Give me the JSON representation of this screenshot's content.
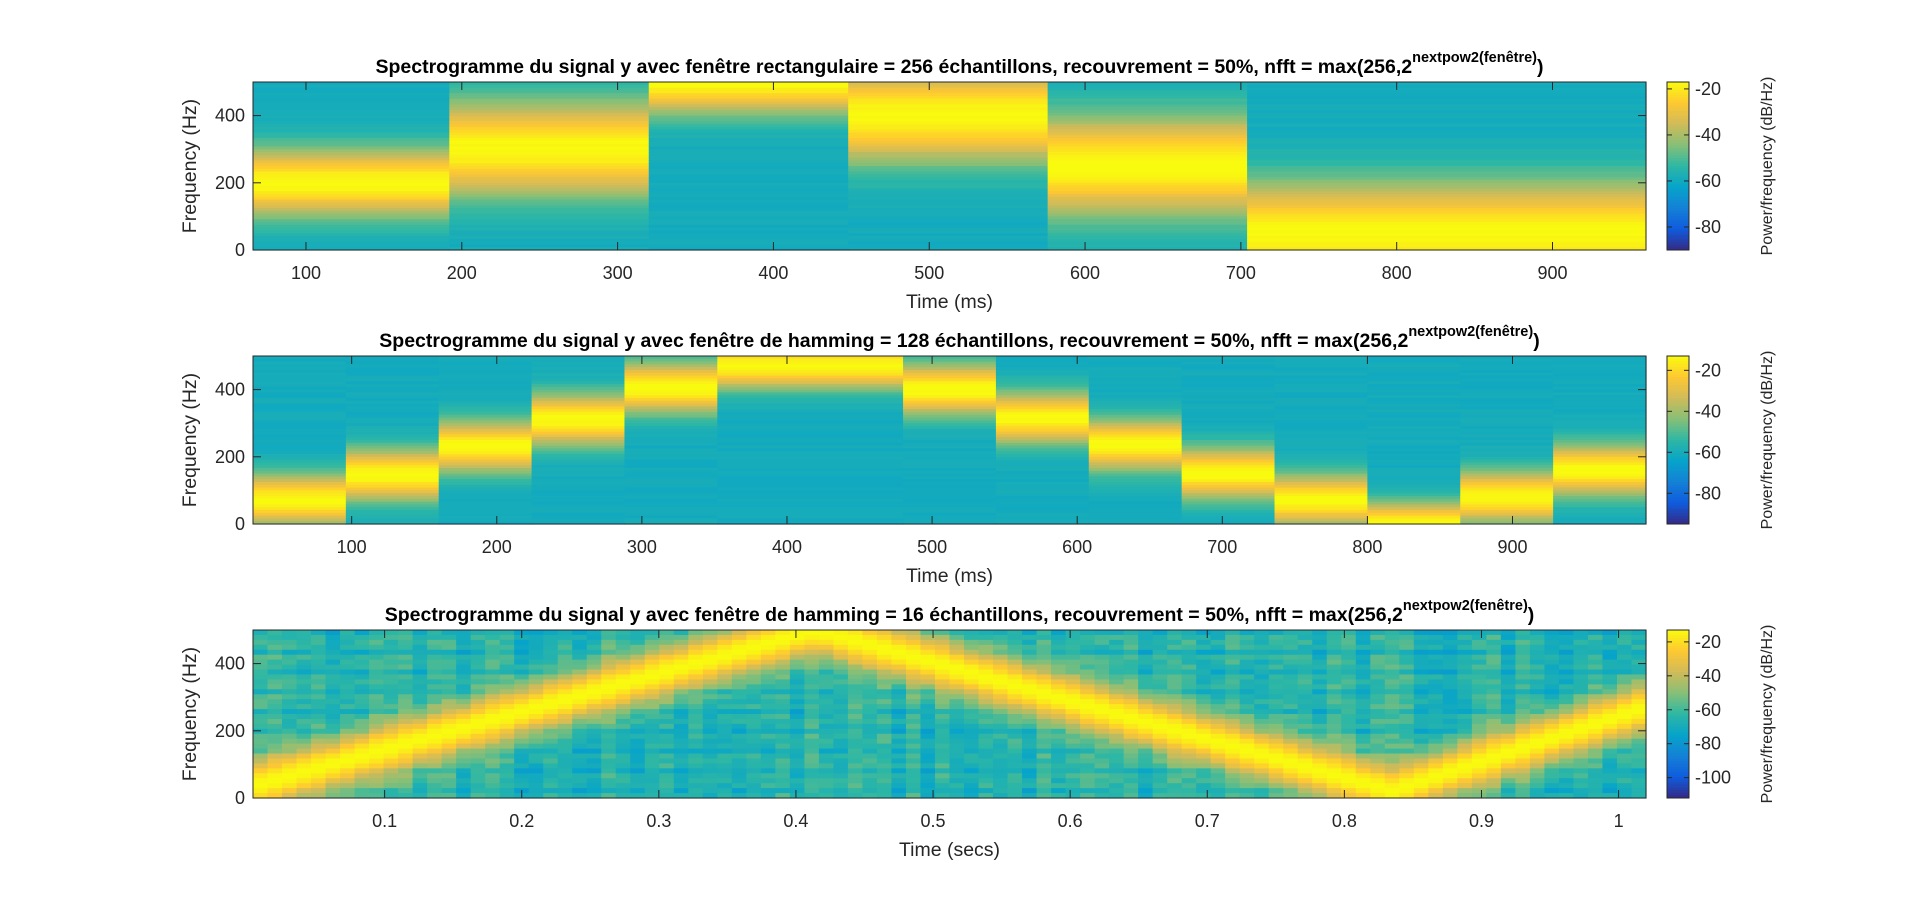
{
  "colors": {
    "parula": [
      "#352a87",
      "#0f5cdd",
      "#1481d6",
      "#06a4ca",
      "#2eb7a4",
      "#87bf77",
      "#d1bb59",
      "#fec832",
      "#f9fb0e"
    ]
  },
  "chart_data": [
    {
      "type": "heatmap",
      "title_main": "Spectrogramme du signal y avec fenêtre rectangulaire  = 256 échantillons, recouvrement = 50%, nfft = max(256,2",
      "title_sup": "nextpow2(fenêtre)",
      "title_end": ")",
      "xlabel": "Time (ms)",
      "ylabel": "Frequency (Hz)",
      "xlim": [
        66,
        960
      ],
      "ylim": [
        0,
        500
      ],
      "xticks": [
        100,
        200,
        300,
        400,
        500,
        600,
        700,
        800,
        900
      ],
      "yticks": [
        0,
        200,
        400
      ],
      "colorbar": {
        "label": "Power/frequency (dB/Hz)",
        "ticks": [
          -20,
          -40,
          -60,
          -80
        ],
        "clim": [
          -90,
          -17
        ]
      },
      "segments": [
        {
          "t0": 66,
          "t1": 192,
          "f_center": 200,
          "f_width": 125
        },
        {
          "t0": 192,
          "t1": 320,
          "f_center": 300,
          "f_width": 175
        },
        {
          "t0": 320,
          "t1": 448,
          "f_center": 500,
          "f_width": 120
        },
        {
          "t0": 448,
          "t1": 576,
          "f_center": 400,
          "f_width": 175
        },
        {
          "t0": 576,
          "t1": 704,
          "f_center": 250,
          "f_width": 185
        },
        {
          "t0": 704,
          "t1": 960,
          "f_center": 50,
          "f_width": 190
        }
      ]
    },
    {
      "type": "heatmap",
      "title_main": "Spectrogramme du signal y avec fenêtre de hamming = 128 échantillons, recouvrement = 50%, nfft = max(256,2",
      "title_sup": "nextpow2(fenêtre)",
      "title_end": ")",
      "xlabel": "Time (ms)",
      "ylabel": "Frequency (Hz)",
      "xlim": [
        32,
        992
      ],
      "ylim": [
        0,
        500
      ],
      "xticks": [
        100,
        200,
        300,
        400,
        500,
        600,
        700,
        800,
        900
      ],
      "yticks": [
        0,
        200,
        400
      ],
      "colorbar": {
        "label": "Power/frequency (dB/Hz)",
        "ticks": [
          -20,
          -40,
          -60,
          -80
        ],
        "clim": [
          -95,
          -13
        ]
      },
      "segments": [
        {
          "t0": 32,
          "t1": 96,
          "f_center": 70,
          "f_width": 95
        },
        {
          "t0": 96,
          "t1": 160,
          "f_center": 145,
          "f_width": 95
        },
        {
          "t0": 160,
          "t1": 224,
          "f_center": 230,
          "f_width": 95
        },
        {
          "t0": 224,
          "t1": 288,
          "f_center": 310,
          "f_width": 95
        },
        {
          "t0": 288,
          "t1": 352,
          "f_center": 405,
          "f_width": 95
        },
        {
          "t0": 352,
          "t1": 480,
          "f_center": 470,
          "f_width": 85
        },
        {
          "t0": 480,
          "t1": 544,
          "f_center": 400,
          "f_width": 95
        },
        {
          "t0": 544,
          "t1": 608,
          "f_center": 315,
          "f_width": 95
        },
        {
          "t0": 608,
          "t1": 672,
          "f_center": 235,
          "f_width": 95
        },
        {
          "t0": 672,
          "t1": 736,
          "f_center": 150,
          "f_width": 95
        },
        {
          "t0": 736,
          "t1": 800,
          "f_center": 70,
          "f_width": 95
        },
        {
          "t0": 800,
          "t1": 864,
          "f_center": 0,
          "f_width": 80
        },
        {
          "t0": 864,
          "t1": 928,
          "f_center": 80,
          "f_width": 95
        },
        {
          "t0": 928,
          "t1": 992,
          "f_center": 160,
          "f_width": 95
        }
      ]
    },
    {
      "type": "heatmap",
      "title_main": "Spectrogramme du signal y avec fenêtre de hamming = 16 échantillons, recouvrement = 50%, nfft = max(256,2",
      "title_sup": "nextpow2(fenêtre)",
      "title_end": ")",
      "xlabel": "Time (secs)",
      "ylabel": "Frequency (Hz)",
      "xlim": [
        0.004,
        1.02
      ],
      "ylim": [
        0,
        500
      ],
      "xticks": [
        0.1,
        0.2,
        0.3,
        0.4,
        0.5,
        0.6,
        0.7,
        0.8,
        0.9,
        1
      ],
      "yticks": [
        0,
        200,
        400
      ],
      "colorbar": {
        "label": "Power/frequency (dB/Hz)",
        "ticks": [
          -20,
          -40,
          -60,
          -80,
          -100
        ],
        "clim": [
          -112,
          -13
        ]
      },
      "chirp": [
        {
          "t": 0.0,
          "f": 30
        },
        {
          "t": 0.415,
          "f": 500
        },
        {
          "t": 0.835,
          "f": 20
        },
        {
          "t": 1.02,
          "f": 270
        }
      ]
    }
  ]
}
